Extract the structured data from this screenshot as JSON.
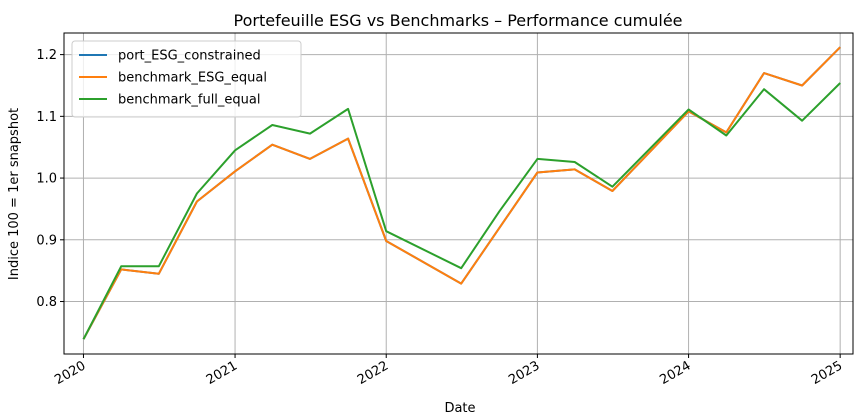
{
  "chart_data": {
    "type": "line",
    "title": "Portefeuille ESG vs Benchmarks – Performance cumulée",
    "xlabel": "Date",
    "ylabel": "Indice 100 = 1er snapshot",
    "x_ticks": [
      "2020",
      "2021",
      "2022",
      "2023",
      "2024",
      "2025"
    ],
    "y_ticks": [
      "0.8",
      "0.9",
      "1.0",
      "1.1",
      "1.2"
    ],
    "xlim": [
      "2019-11-15",
      "2025-02-01"
    ],
    "ylim": [
      0.715,
      1.235
    ],
    "grid": true,
    "legend_position": "upper-left",
    "x": [
      "2020-01-01",
      "2020-04-01",
      "2020-07-01",
      "2020-10-01",
      "2021-01-01",
      "2021-04-01",
      "2021-07-01",
      "2021-10-01",
      "2022-01-01",
      "2022-04-01",
      "2022-07-01",
      "2022-10-01",
      "2023-01-01",
      "2023-04-01",
      "2023-07-01",
      "2023-10-01",
      "2024-01-01",
      "2024-04-01",
      "2024-07-01",
      "2024-10-01",
      "2025-01-01"
    ],
    "series": [
      {
        "name": "port_ESG_constrained",
        "color": "#1f77b4",
        "values": [
          0.739,
          0.852,
          0.845,
          0.962,
          1.011,
          1.054,
          1.031,
          1.064,
          0.898,
          null,
          0.829,
          null,
          1.009,
          1.014,
          0.979,
          null,
          1.108,
          1.074,
          1.17,
          1.15,
          1.212
        ]
      },
      {
        "name": "benchmark_ESG_equal",
        "color": "#ff7f0e",
        "values": [
          0.739,
          0.852,
          0.845,
          0.962,
          1.011,
          1.054,
          1.031,
          1.064,
          0.898,
          null,
          0.829,
          null,
          1.009,
          1.014,
          0.979,
          null,
          1.108,
          1.074,
          1.17,
          1.15,
          1.212
        ]
      },
      {
        "name": "benchmark_full_equal",
        "color": "#2ca02c",
        "values": [
          0.739,
          0.857,
          0.857,
          0.975,
          1.045,
          1.086,
          1.072,
          1.112,
          0.914,
          null,
          0.854,
          0.946,
          1.031,
          1.026,
          0.986,
          null,
          1.111,
          1.069,
          1.144,
          1.093,
          1.154
        ]
      }
    ]
  }
}
